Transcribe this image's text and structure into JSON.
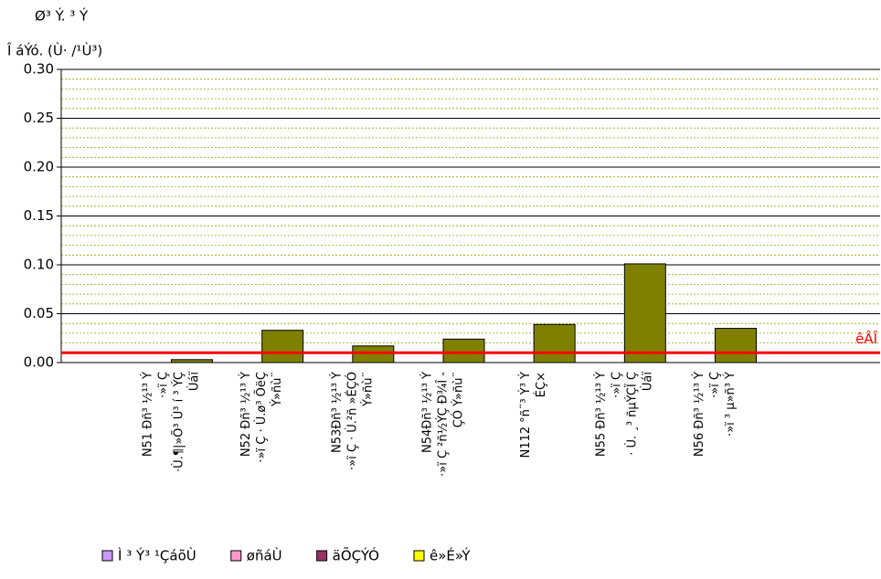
{
  "chart_data": {
    "type": "bar",
    "title": "Ø³ Ý. ³ Ý",
    "y_label": "Î áÝó. (Ù· /¹Ù³)",
    "categories": [
      [
        "N51 Ðñ³ ½¹³ Ý",
        "·»ï Ç",
        "·Ù.¶|»Õ³ Ù³ í ³ ÝÇ",
        "Ùáï"
      ],
      [
        "N52 Ðñ³ ½¹³ Ý",
        "·»ï Ç · Ù.ø³ ÕëÇ",
        "Ý»ñù¨"
      ],
      [
        "N53Ðñ³ ½¹³ Ý",
        "·»ï Ç · Ù.²ñ »ÉÇÓ",
        "Ý»ñù¨"
      ],
      [
        "N54Ðñ³ ½¹³ Ý",
        "·»ï Ç ²ñ½ÝÇ Ð¾Î -",
        "ÇÓ Ý»ñù¨"
      ],
      [
        "N112 °ñ¨³ Ý³ Ý",
        "ÉÇ×"
      ],
      [
        "N55 Ðñ³ ½¹³ Ý",
        "·»ï Ç",
        "· Ù. ¸³ ñµÝÇÏ Ç",
        "Ùáï"
      ],
      [
        "N56 Ðñ³ ½¹³ Ý",
        "·»ï Ç",
        "·»ï ³ µ»ñ³ Ý"
      ]
    ],
    "values": [
      0.003,
      0.033,
      0.017,
      0.024,
      0.039,
      0.101,
      0.035
    ],
    "color": "#808000",
    "ylim": [
      0,
      0.3
    ],
    "yticks": [
      {
        "value": 0,
        "label": "0.00"
      },
      {
        "value": 0.05,
        "label": "0.05"
      },
      {
        "value": 0.1,
        "label": "0.10"
      },
      {
        "value": 0.15,
        "label": "0.15"
      },
      {
        "value": 0.2,
        "label": "0.20"
      },
      {
        "value": 0.25,
        "label": "0.25"
      },
      {
        "value": 0.3,
        "label": "0.30"
      }
    ],
    "minor_step": 0.01,
    "grid": true,
    "threshold": {
      "value": 0.01,
      "label": "êÂÎ",
      "color": "#ff0000"
    },
    "legend": [
      {
        "name": "Ì ³ Ý³ ¹ÇáõÙ",
        "color": "#cc99ff"
      },
      {
        "name": "øñáÙ",
        "color": "#ff99cc"
      },
      {
        "name": "äÕÇÝÓ",
        "color": "#993366"
      },
      {
        "name": "ê»É»Ý",
        "color": "#ffff00"
      }
    ]
  }
}
